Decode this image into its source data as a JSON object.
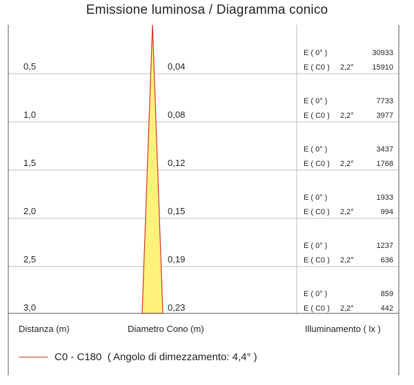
{
  "title": "Emissione luminosa  / Diagramma conico",
  "rows": [
    {
      "distance": "0,5",
      "diameter": "0,04",
      "e0_label": "E ( 0° )",
      "e0_value": "30933",
      "ec0_label": "E ( C0 )",
      "angle": "2,2°",
      "ec0_value": "15910"
    },
    {
      "distance": "1,0",
      "diameter": "0,08",
      "e0_label": "E ( 0° )",
      "e0_value": "7733",
      "ec0_label": "E ( C0 )",
      "angle": "2,2°",
      "ec0_value": "3977"
    },
    {
      "distance": "1,5",
      "diameter": "0,12",
      "e0_label": "E ( 0° )",
      "e0_value": "3437",
      "ec0_label": "E ( C0 )",
      "angle": "2,2°",
      "ec0_value": "1768"
    },
    {
      "distance": "2,0",
      "diameter": "0,15",
      "e0_label": "E ( 0° )",
      "e0_value": "1933",
      "ec0_label": "E ( C0 )",
      "angle": "2,2°",
      "ec0_value": "994"
    },
    {
      "distance": "2,5",
      "diameter": "0,19",
      "e0_label": "E ( 0° )",
      "e0_value": "1237",
      "ec0_label": "E ( C0 )",
      "angle": "2,2°",
      "ec0_value": "636"
    },
    {
      "distance": "3,0",
      "diameter": "0,23",
      "e0_label": "E ( 0° )",
      "e0_value": "859",
      "ec0_label": "E ( C0 )",
      "angle": "2,2°",
      "ec0_value": "442"
    }
  ],
  "footer": {
    "distance_label": "Distanza (m)",
    "diameter_label": "Diametro Cono (m)",
    "illuminance_label": "Illuminamento ( lx )"
  },
  "legend": {
    "text": "C0 - C180  ( Angolo di dimezzamento: 4,4° )",
    "line_color": "#d4302a"
  },
  "colors": {
    "cone_fill": "#fff27a",
    "cone_stroke": "#d4302a",
    "grid": "#bdbdbd",
    "border": "#555555"
  }
}
